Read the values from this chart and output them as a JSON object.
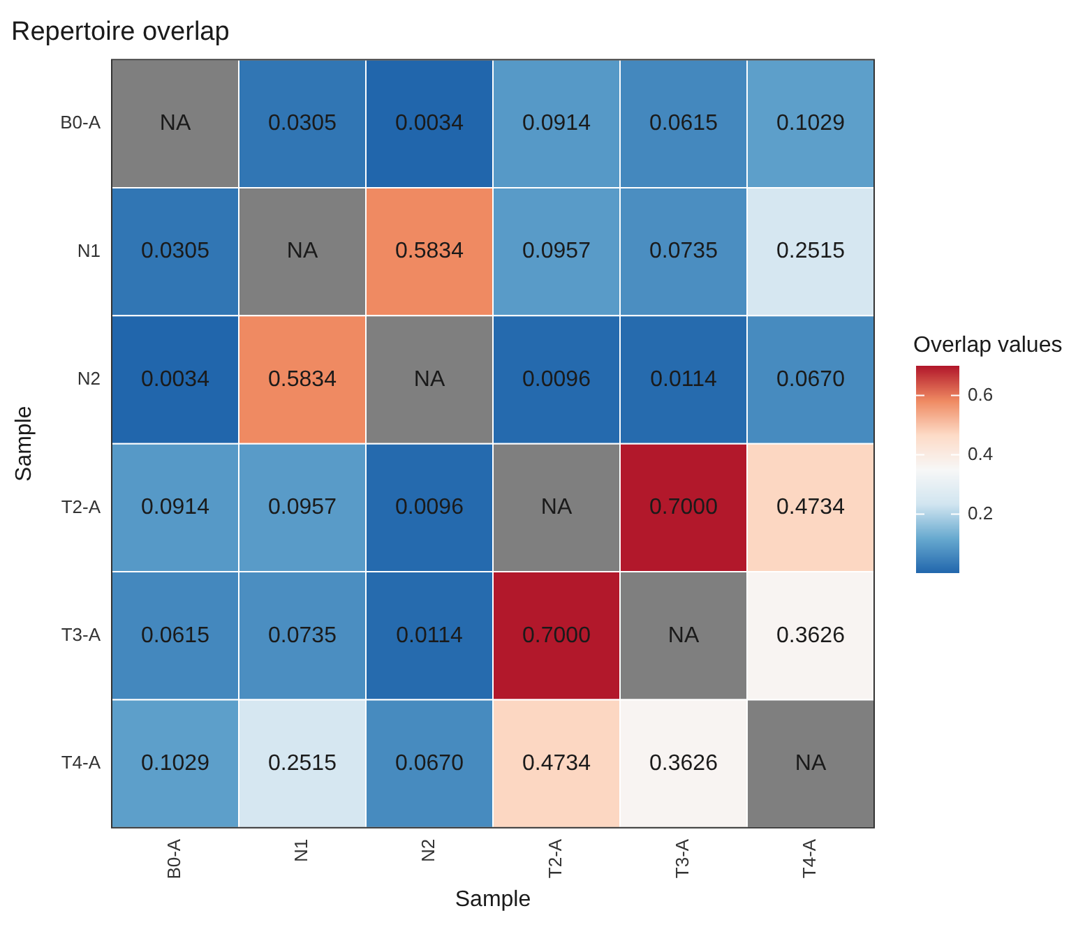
{
  "chart_data": {
    "type": "heatmap",
    "title": "Repertoire overlap",
    "xlabel": "Sample",
    "ylabel": "Sample",
    "clabel": "Overlap values",
    "categories": [
      "B0-A",
      "N1",
      "N2",
      "T2-A",
      "T3-A",
      "T4-A"
    ],
    "y_categories": [
      "B0-A",
      "N1",
      "N2",
      "T2-A",
      "T3-A",
      "T4-A"
    ],
    "cells": [
      [
        null,
        0.0305,
        0.0034,
        0.0914,
        0.0615,
        0.1029
      ],
      [
        0.0305,
        null,
        0.5834,
        0.0957,
        0.0735,
        0.2515
      ],
      [
        0.0034,
        0.5834,
        null,
        0.0096,
        0.0114,
        0.067
      ],
      [
        0.0914,
        0.0957,
        0.0096,
        null,
        0.7,
        0.4734
      ],
      [
        0.0615,
        0.0735,
        0.0114,
        0.7,
        null,
        0.3626
      ],
      [
        0.1029,
        0.2515,
        0.067,
        0.4734,
        0.3626,
        null
      ]
    ],
    "cell_labels": [
      [
        "NA",
        "0.0305",
        "0.0034",
        "0.0914",
        "0.0615",
        "0.1029"
      ],
      [
        "0.0305",
        "NA",
        "0.5834",
        "0.0957",
        "0.0735",
        "0.2515"
      ],
      [
        "0.0034",
        "0.5834",
        "NA",
        "0.0096",
        "0.0114",
        "0.0670"
      ],
      [
        "0.0914",
        "0.0957",
        "0.0096",
        "NA",
        "0.7000",
        "0.4734"
      ],
      [
        "0.0615",
        "0.0735",
        "0.0114",
        "0.7000",
        "NA",
        "0.3626"
      ],
      [
        "0.1029",
        "0.2515",
        "0.0670",
        "0.4734",
        "0.3626",
        "NA"
      ]
    ],
    "clim": [
      0.0034,
      0.7
    ],
    "cticks": [
      0.2,
      0.4,
      0.6
    ]
  }
}
